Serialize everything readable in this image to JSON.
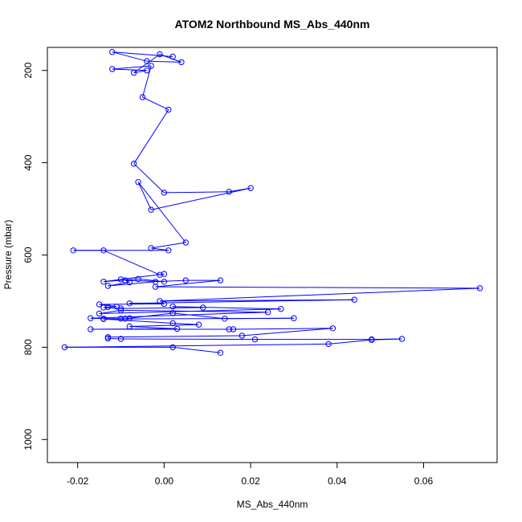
{
  "chart_data": {
    "type": "scatter",
    "title": "ATOM2 Northbound MS_Abs_440nm",
    "xlabel": "MS_Abs_440nm",
    "ylabel": "Pressure (mbar)",
    "xlim": [
      -0.027,
      0.077
    ],
    "ylim": [
      1050,
      150
    ],
    "y_reversed": true,
    "grid": false,
    "legend": "none",
    "x_ticks": [
      -0.02,
      0,
      0.02,
      0.04,
      0.06
    ],
    "x_tick_labels": [
      "-0.02",
      "0.00",
      "0.02",
      "0.04",
      "0.06"
    ],
    "y_ticks": [
      200,
      400,
      600,
      800,
      1000
    ],
    "y_tick_labels": [
      "200",
      "400",
      "600",
      "800",
      "1000"
    ],
    "color": "#0000ff",
    "series": [
      {
        "values": [
          [
            0.002,
            170
          ],
          [
            -0.012,
            160
          ],
          [
            -0.004,
            180
          ],
          [
            0.004,
            182
          ],
          [
            -0.001,
            165
          ],
          [
            -0.007,
            205
          ],
          [
            -0.004,
            200
          ],
          [
            -0.012,
            197
          ],
          [
            -0.003,
            190
          ],
          [
            -0.005,
            258
          ],
          [
            0.001,
            285
          ],
          [
            -0.007,
            402
          ],
          [
            0.0,
            465
          ],
          [
            0.015,
            463
          ],
          [
            0.02,
            455
          ],
          [
            -0.003,
            502
          ],
          [
            -0.006,
            442
          ],
          [
            0.005,
            573
          ],
          [
            -0.003,
            585
          ],
          [
            0.001,
            590
          ],
          [
            -0.021,
            590
          ],
          [
            -0.014,
            590
          ],
          [
            -0.001,
            643
          ],
          [
            0.0,
            641
          ],
          [
            -0.01,
            653
          ],
          [
            -0.014,
            658
          ],
          [
            -0.006,
            652
          ],
          [
            0.0,
            658
          ],
          [
            -0.009,
            655
          ],
          [
            -0.008,
            659
          ],
          [
            -0.013,
            667
          ],
          [
            -0.002,
            658
          ],
          [
            0.005,
            655
          ],
          [
            0.013,
            655
          ],
          [
            -0.002,
            669
          ],
          [
            0.073,
            672
          ],
          [
            -0.001,
            700
          ],
          [
            0.044,
            697
          ],
          [
            -0.008,
            705
          ],
          [
            0.0,
            706
          ],
          [
            -0.015,
            707
          ],
          [
            -0.011,
            712
          ],
          [
            -0.013,
            713
          ],
          [
            -0.014,
            714
          ],
          [
            -0.01,
            716
          ],
          [
            0.009,
            714
          ],
          [
            0.002,
            712
          ],
          [
            0.027,
            717
          ],
          [
            -0.015,
            727
          ],
          [
            -0.01,
            720
          ],
          [
            0.024,
            724
          ],
          [
            -0.017,
            737
          ],
          [
            -0.014,
            738
          ],
          [
            -0.01,
            738
          ],
          [
            -0.009,
            738
          ],
          [
            -0.008,
            737
          ],
          [
            0.002,
            726
          ],
          [
            0.014,
            738
          ],
          [
            0.03,
            737
          ],
          [
            -0.014,
            739
          ],
          [
            0.002,
            748
          ],
          [
            0.008,
            751
          ],
          [
            -0.008,
            755
          ],
          [
            0.003,
            760
          ],
          [
            -0.017,
            761
          ],
          [
            0.015,
            761
          ],
          [
            0.016,
            761
          ],
          [
            0.039,
            759
          ],
          [
            0.018,
            775
          ],
          [
            -0.013,
            778
          ],
          [
            -0.013,
            781
          ],
          [
            -0.01,
            782
          ],
          [
            0.021,
            783
          ],
          [
            0.048,
            783
          ],
          [
            0.055,
            782
          ],
          [
            0.048,
            784
          ],
          [
            0.038,
            793
          ],
          [
            -0.023,
            800
          ],
          [
            0.002,
            800
          ],
          [
            0.013,
            812
          ]
        ]
      }
    ]
  }
}
